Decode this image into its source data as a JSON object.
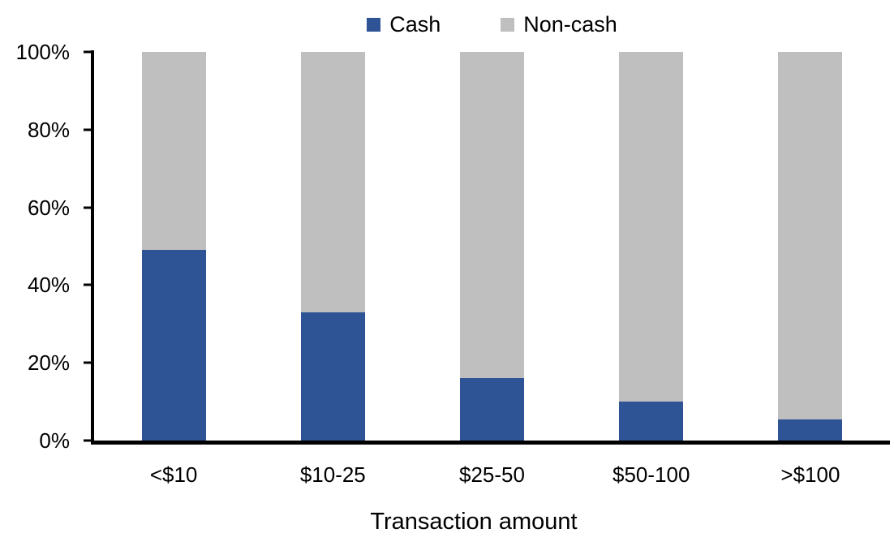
{
  "chart_data": {
    "type": "bar",
    "stacked": true,
    "title": "",
    "xlabel": "Transaction amount",
    "ylabel": "",
    "categories": [
      "<$10",
      "$10-25",
      "$25-50",
      "$50-100",
      ">$100"
    ],
    "series": [
      {
        "name": "Cash",
        "color": "#2F5496",
        "values": [
          49,
          33,
          16,
          10,
          5.5
        ]
      },
      {
        "name": "Non-cash",
        "color": "#BFBFBF",
        "values": [
          51,
          67,
          84,
          90,
          94.5
        ]
      }
    ],
    "y_axis": {
      "min": 0,
      "max": 100,
      "tick_step": 20,
      "tick_labels": [
        "0%",
        "20%",
        "40%",
        "60%",
        "80%",
        "100%"
      ]
    },
    "legend_position": "top",
    "grid": false
  },
  "colors": {
    "cash": "#2F5496",
    "noncash": "#BFBFBF",
    "axis": "#000000",
    "background": "#FFFFFF"
  }
}
